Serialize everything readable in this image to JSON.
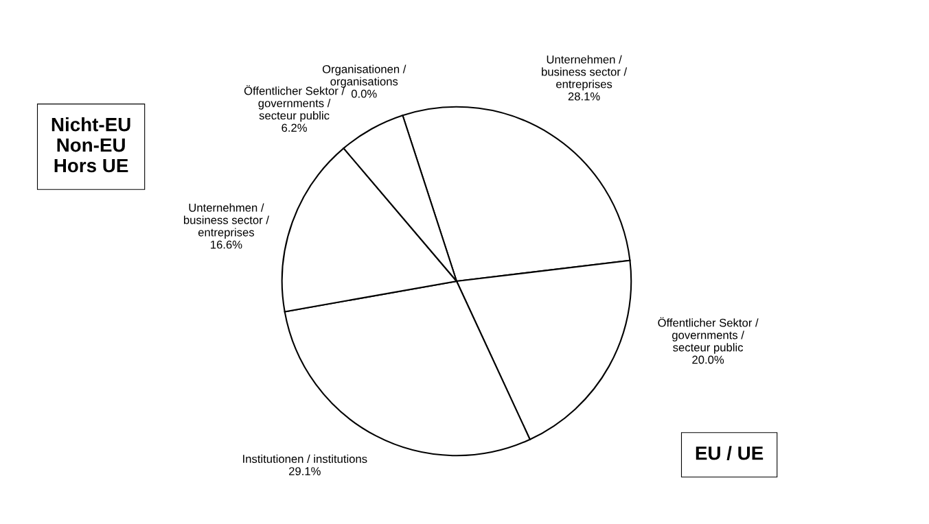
{
  "chart_data": {
    "type": "pie",
    "categories": [
      "Unternehmen /\nbusiness sector /\nentreprises",
      "Öffentlicher Sektor /\ngovernments /\nsecteur public",
      "Institutionen / institutions",
      "Unternehmen /\nbusiness sector /\nentreprises",
      "Öffentlicher Sektor /\ngovernments /\nsecteur public",
      "Organisationen /\norganisations"
    ],
    "values": [
      28.1,
      20.0,
      29.1,
      16.6,
      6.2,
      0.0
    ],
    "value_labels": [
      "28.1%",
      "20.0%",
      "29.1%",
      "16.6%",
      "6.2%",
      "0.0%"
    ],
    "colors": [
      "#ffffff",
      "#ffffff",
      "#ffffff",
      "#ffffff",
      "#ffffff",
      "#ffffff"
    ],
    "annotations": [
      "Nicht-EU\nNon-EU\nHors UE",
      "EU / UE"
    ],
    "legend": false
  }
}
